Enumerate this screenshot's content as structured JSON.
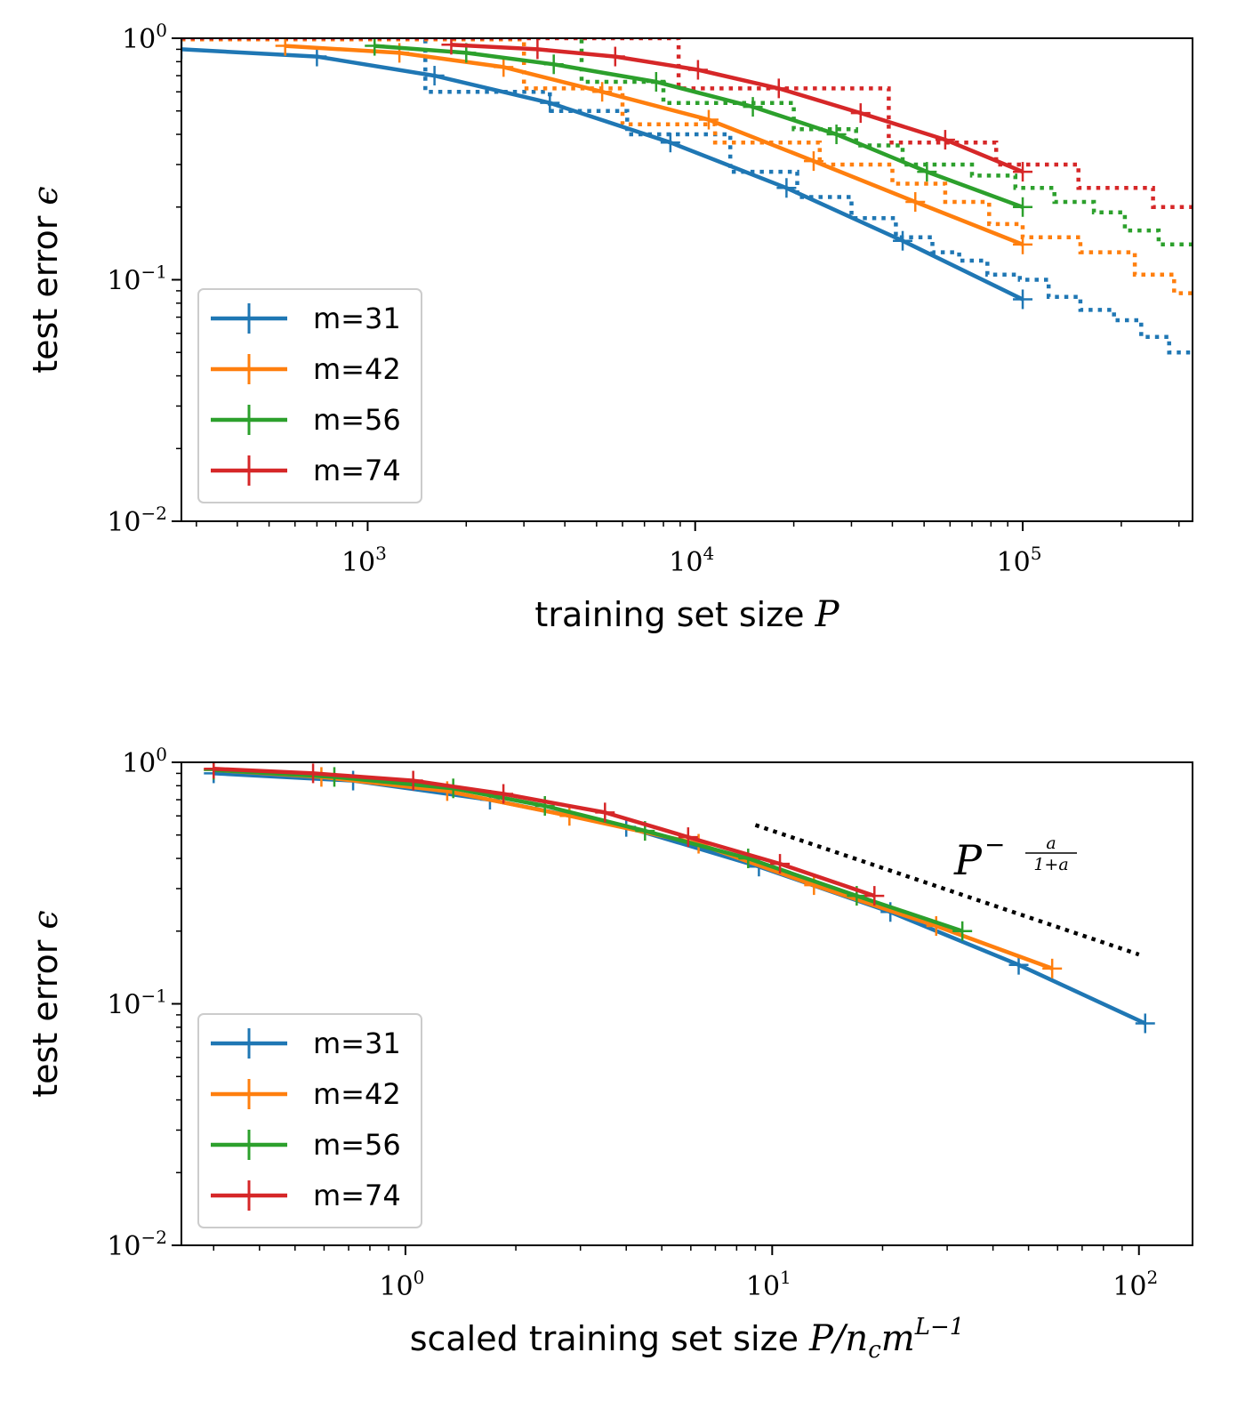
{
  "colors": {
    "m31": "#1f77b4",
    "m42": "#ff7f0e",
    "m56": "#2ca02c",
    "m74": "#d62728"
  },
  "chart_data": [
    {
      "type": "line",
      "xscale": "log",
      "yscale": "log",
      "xlim": [
        270,
        330000
      ],
      "ylim": [
        0.01,
        1
      ],
      "xticks": [
        1000,
        10000,
        100000
      ],
      "xtick_labels": [
        {
          "base": "10",
          "exp": "3"
        },
        {
          "base": "10",
          "exp": "4"
        },
        {
          "base": "10",
          "exp": "5"
        }
      ],
      "yticks": [
        0.01,
        0.1,
        1
      ],
      "ytick_labels": [
        {
          "base": "10",
          "exp": "−2"
        },
        {
          "base": "10",
          "exp": "−1"
        },
        {
          "base": "10",
          "exp": "0"
        }
      ],
      "xlabel": {
        "text": "training set size ",
        "math": "P"
      },
      "ylabel": {
        "text": "test error ",
        "math": "ϵ"
      },
      "legend_position": "lower-left",
      "series": [
        {
          "name": "m=31",
          "color_key": "m31",
          "x": [
            270,
            700,
            1600,
            3600,
            8400,
            19000,
            43000,
            100000
          ],
          "y": [
            0.9,
            0.84,
            0.7,
            0.54,
            0.37,
            0.24,
            0.145,
            0.083
          ],
          "dotted": {
            "x": [
              1500,
              1500,
              3600,
              3600,
              6200,
              6200,
              12800,
              12800,
              20500,
              20500,
              30000,
              30000,
              41000,
              41000,
              53000,
              53000,
              64000,
              64000,
              78000,
              78000,
              98000,
              98000,
              120000,
              120000,
              150000,
              150000,
              190000,
              190000,
              230000,
              230000,
              280000,
              280000,
              330000
            ],
            "y": [
              0.99,
              0.6,
              0.6,
              0.5,
              0.5,
              0.4,
              0.4,
              0.28,
              0.28,
              0.22,
              0.22,
              0.18,
              0.18,
              0.15,
              0.15,
              0.13,
              0.13,
              0.12,
              0.12,
              0.105,
              0.105,
              0.1,
              0.1,
              0.085,
              0.085,
              0.075,
              0.075,
              0.068,
              0.068,
              0.058,
              0.058,
              0.05,
              0.05
            ]
          }
        },
        {
          "name": "m=42",
          "color_key": "m42",
          "x": [
            560,
            1250,
            2600,
            5200,
            11000,
            23000,
            47000,
            100000
          ],
          "y": [
            0.93,
            0.87,
            0.76,
            0.6,
            0.46,
            0.31,
            0.21,
            0.14
          ],
          "dotted": {
            "x": [
              270,
              3000,
              3000,
              6000,
              6000,
              11500,
              11500,
              24000,
              24000,
              40000,
              40000,
              58000,
              58000,
              79000,
              79000,
              100000,
              100000,
              150000,
              150000,
              220000,
              220000,
              290000,
              290000,
              330000
            ],
            "y": [
              0.99,
              0.99,
              0.62,
              0.62,
              0.44,
              0.44,
              0.37,
              0.37,
              0.3,
              0.3,
              0.25,
              0.25,
              0.21,
              0.21,
              0.17,
              0.17,
              0.15,
              0.15,
              0.13,
              0.13,
              0.105,
              0.105,
              0.088,
              0.088
            ]
          }
        },
        {
          "name": "m=56",
          "color_key": "m56",
          "x": [
            1050,
            2000,
            3700,
            7600,
            15000,
            27000,
            51000,
            100000
          ],
          "y": [
            0.93,
            0.87,
            0.78,
            0.66,
            0.52,
            0.4,
            0.28,
            0.2
          ],
          "dotted": {
            "x": [
              4500,
              4500,
              8000,
              8000,
              20000,
              20000,
              31000,
              31000,
              43000,
              43000,
              55000,
              55000,
              70000,
              70000,
              95000,
              95000,
              125000,
              125000,
              165000,
              165000,
              205000,
              205000,
              260000,
              260000,
              330000
            ],
            "y": [
              0.99,
              0.66,
              0.66,
              0.54,
              0.54,
              0.42,
              0.42,
              0.36,
              0.36,
              0.3,
              0.3,
              0.3,
              0.3,
              0.27,
              0.27,
              0.24,
              0.24,
              0.21,
              0.21,
              0.19,
              0.19,
              0.16,
              0.16,
              0.14,
              0.14
            ]
          }
        },
        {
          "name": "m=74",
          "color_key": "m74",
          "x": [
            1800,
            3300,
            5700,
            10200,
            18000,
            32000,
            58000,
            100000
          ],
          "y": [
            0.94,
            0.9,
            0.84,
            0.74,
            0.62,
            0.49,
            0.38,
            0.28
          ],
          "dotted": {
            "x": [
              270,
              8900,
              8900,
              39000,
              39000,
              83000,
              83000,
              100000,
              100000,
              148000,
              148000,
              250000,
              250000,
              330000
            ],
            "y": [
              1,
              1,
              0.62,
              0.62,
              0.37,
              0.37,
              0.3,
              0.3,
              0.3,
              0.3,
              0.24,
              0.24,
              0.2,
              0.2
            ]
          }
        }
      ]
    },
    {
      "type": "line",
      "xscale": "log",
      "yscale": "log",
      "xlim": [
        0.245,
        140
      ],
      "ylim": [
        0.01,
        1
      ],
      "xticks": [
        1,
        10,
        100
      ],
      "xtick_labels": [
        {
          "base": "10",
          "exp": "0"
        },
        {
          "base": "10",
          "exp": "1"
        },
        {
          "base": "10",
          "exp": "2"
        }
      ],
      "yticks": [
        0.01,
        0.1,
        1
      ],
      "ytick_labels": [
        {
          "base": "10",
          "exp": "−2"
        },
        {
          "base": "10",
          "exp": "−1"
        },
        {
          "base": "10",
          "exp": "0"
        }
      ],
      "xlabel": {
        "text": "scaled training set size ",
        "math_base": "P/n",
        "math_sub": "c",
        "math_m": "m",
        "math_sup": "L−1"
      },
      "ylabel": {
        "text": "test error ",
        "math": "ϵ"
      },
      "legend_position": "lower-left",
      "annotation": {
        "base": "P",
        "sup": "−",
        "frac_num": "a",
        "frac_den": "1+a"
      },
      "reference_line": {
        "x": [
          9,
          100
        ],
        "y": [
          0.55,
          0.16
        ]
      },
      "series": [
        {
          "name": "m=31",
          "color_key": "m31",
          "x": [
            0.3,
            0.72,
            1.7,
            4.0,
            9.2,
            21,
            47,
            104
          ],
          "y": [
            0.9,
            0.84,
            0.7,
            0.54,
            0.37,
            0.24,
            0.145,
            0.083
          ]
        },
        {
          "name": "m=42",
          "color_key": "m42",
          "x": [
            0.3,
            0.59,
            1.3,
            2.8,
            6.3,
            13,
            28,
            58
          ],
          "y": [
            0.93,
            0.87,
            0.76,
            0.6,
            0.46,
            0.31,
            0.21,
            0.14
          ]
        },
        {
          "name": "m=56",
          "color_key": "m56",
          "x": [
            0.3,
            0.64,
            1.35,
            2.4,
            4.5,
            8.6,
            17,
            33
          ],
          "y": [
            0.93,
            0.87,
            0.78,
            0.66,
            0.52,
            0.4,
            0.28,
            0.2
          ]
        },
        {
          "name": "m=74",
          "color_key": "m74",
          "x": [
            0.3,
            0.56,
            1.05,
            1.85,
            3.5,
            5.9,
            10.5,
            19
          ],
          "y": [
            0.94,
            0.9,
            0.84,
            0.74,
            0.62,
            0.49,
            0.38,
            0.28
          ]
        }
      ]
    }
  ]
}
